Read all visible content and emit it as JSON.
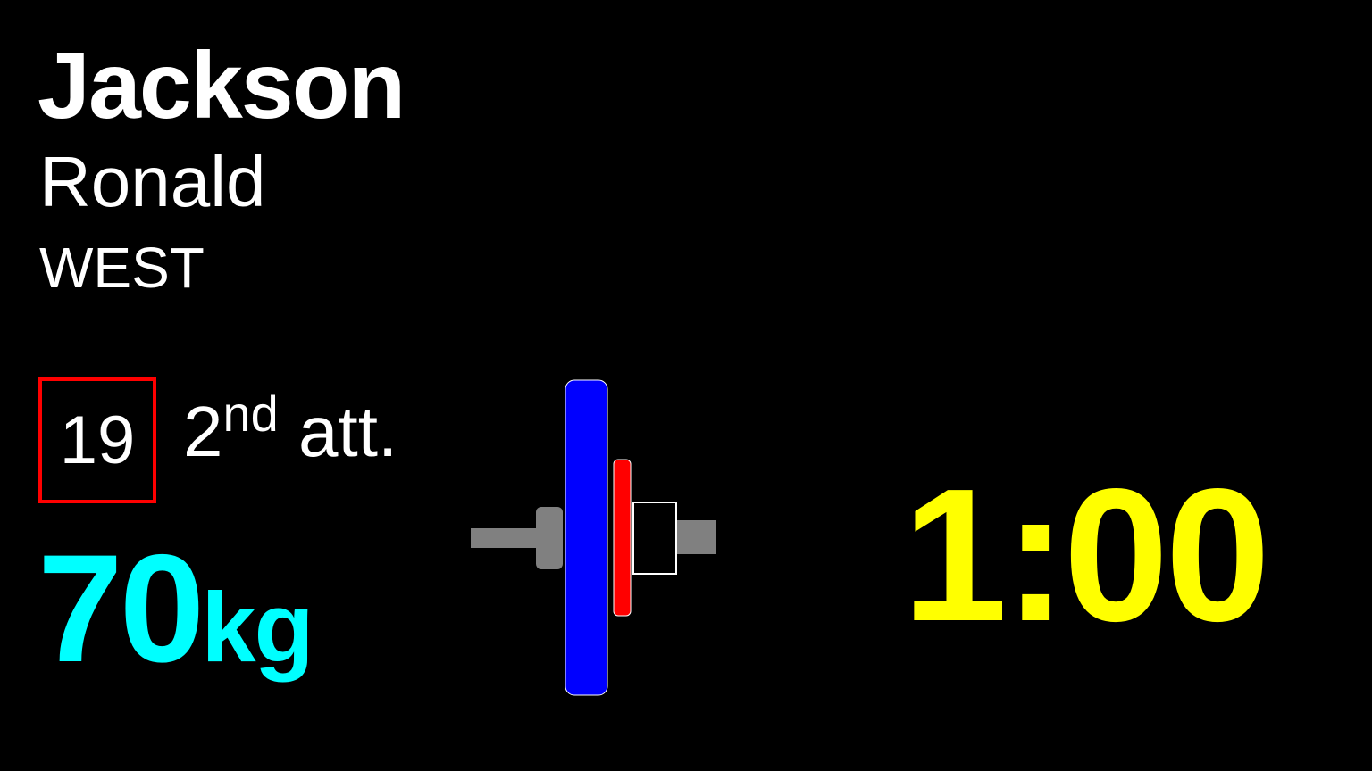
{
  "athlete": {
    "last_name": "Jackson",
    "first_name": "Ronald",
    "team": "WEST"
  },
  "lift": {
    "start_number": "19",
    "attempt_number": "2",
    "attempt_suffix": "nd",
    "attempt_label": "att.",
    "weight_value": "70",
    "weight_unit": "kg"
  },
  "plates": [
    {
      "name": "blue-plate",
      "color": "#0000ff"
    },
    {
      "name": "red-plate",
      "color": "#ff0000"
    },
    {
      "name": "collar",
      "color": "#000000"
    }
  ],
  "clock": {
    "time": "1:00"
  },
  "colors": {
    "background": "#000000",
    "weight": "#00ffff",
    "clock": "#ffff00",
    "start_number_border": "#ff0000",
    "bar": "#808080"
  }
}
